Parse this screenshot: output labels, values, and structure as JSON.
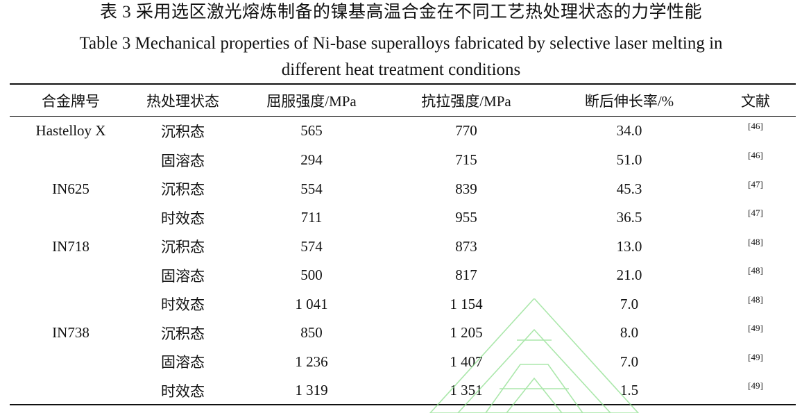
{
  "caption": {
    "title_cn": "表 3  采用选区激光熔炼制备的镍基高温合金在不同工艺热处理状态的力学性能",
    "title_en_line1": "Table 3 Mechanical properties of Ni-base superalloys fabricated by selective laser melting in",
    "title_en_line2": "different heat treatment conditions"
  },
  "table": {
    "headers": {
      "alloy": "合金牌号",
      "state": "热处理状态",
      "yield": "屈服强度/MPa",
      "tensile": "抗拉强度/MPa",
      "elongation": "断后伸长率/%",
      "reference": "文献"
    },
    "rows": [
      {
        "alloy": "Hastelloy X",
        "state": "沉积态",
        "yield": "565",
        "tensile": "770",
        "elongation": "34.0",
        "ref": "[46]"
      },
      {
        "alloy": "",
        "state": "固溶态",
        "yield": "294",
        "tensile": "715",
        "elongation": "51.0",
        "ref": "[46]"
      },
      {
        "alloy": "IN625",
        "state": "沉积态",
        "yield": "554",
        "tensile": "839",
        "elongation": "45.3",
        "ref": "[47]"
      },
      {
        "alloy": "",
        "state": "时效态",
        "yield": "711",
        "tensile": "955",
        "elongation": "36.5",
        "ref": "[47]"
      },
      {
        "alloy": "IN718",
        "state": "沉积态",
        "yield": "574",
        "tensile": "873",
        "elongation": "13.0",
        "ref": "[48]"
      },
      {
        "alloy": "",
        "state": "固溶态",
        "yield": "500",
        "tensile": "817",
        "elongation": "21.0",
        "ref": "[48]"
      },
      {
        "alloy": "",
        "state": "时效态",
        "yield": "1 041",
        "tensile": "1 154",
        "elongation": "7.0",
        "ref": "[48]"
      },
      {
        "alloy": "IN738",
        "state": "沉积态",
        "yield": "850",
        "tensile": "1 205",
        "elongation": "8.0",
        "ref": "[49]"
      },
      {
        "alloy": "",
        "state": "固溶态",
        "yield": "1 236",
        "tensile": "1 407",
        "elongation": "7.0",
        "ref": "[49]"
      },
      {
        "alloy": "",
        "state": "时效态",
        "yield": "1 319",
        "tensile": "1 351",
        "elongation": "1.5",
        "ref": "[49]"
      }
    ]
  },
  "watermark": {
    "icon": "journal-logo-watermark-icon",
    "color": "#8fe08f"
  }
}
